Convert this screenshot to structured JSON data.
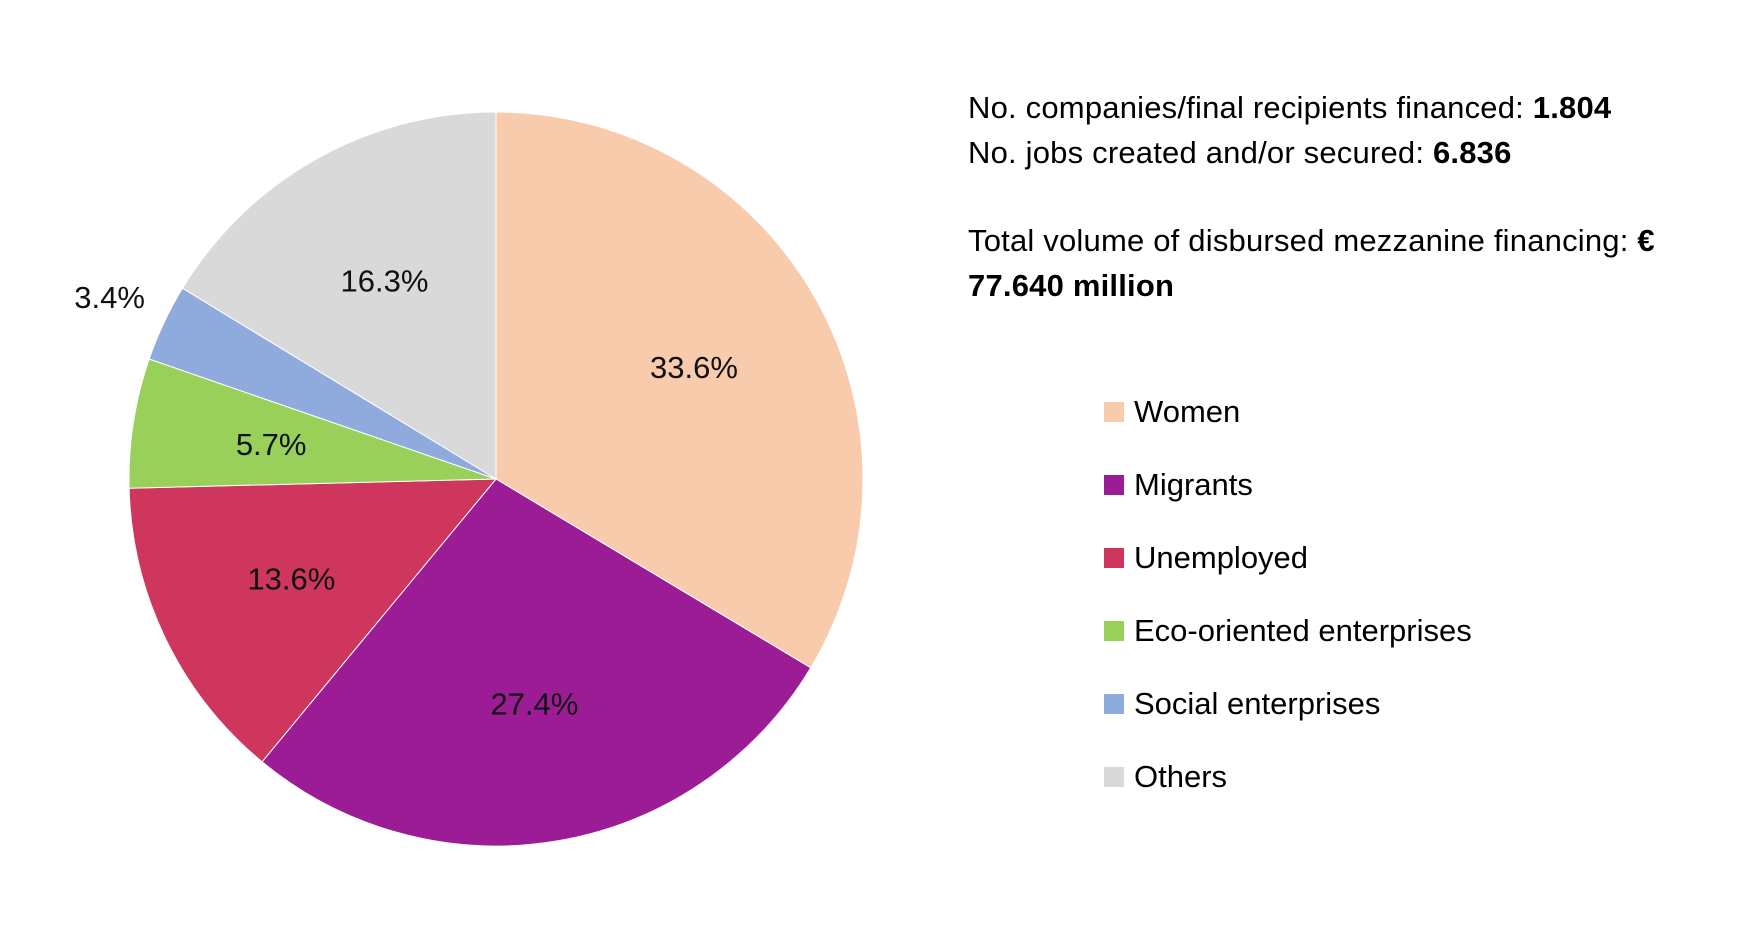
{
  "info": {
    "companies_label": "No. companies/final recipients financed: ",
    "companies_value": "1.804",
    "jobs_label": "No. jobs created and/or secured: ",
    "jobs_value": "6.836",
    "volume_label": "Total volume of disbursed  mezzanine financing: ",
    "volume_value_line1": "€",
    "volume_value_line2": "77.640 million"
  },
  "chart_data": {
    "type": "pie",
    "title": "",
    "start_angle_deg": 0,
    "direction": "clockwise",
    "labels_format": "percent",
    "legend_position": "right",
    "slices": [
      {
        "name": "Women",
        "value": 33.6,
        "label": "33.6%",
        "color": "#F8CBAD",
        "label_outside": false
      },
      {
        "name": "Migrants",
        "value": 27.4,
        "label": "27.4%",
        "color": "#9C1C96",
        "label_outside": false
      },
      {
        "name": "Unemployed",
        "value": 13.6,
        "label": "13.6%",
        "color": "#CF365E",
        "label_outside": false
      },
      {
        "name": "Eco-oriented enterprises",
        "value": 5.7,
        "label": "5.7%",
        "color": "#98D05A",
        "label_outside": false
      },
      {
        "name": "Social enterprises",
        "value": 3.4,
        "label": "3.4%",
        "color": "#8FAADC",
        "label_outside": true
      },
      {
        "name": "Others",
        "value": 16.3,
        "label": "16.3%",
        "color": "#D9D9D9",
        "label_outside": false
      }
    ]
  }
}
